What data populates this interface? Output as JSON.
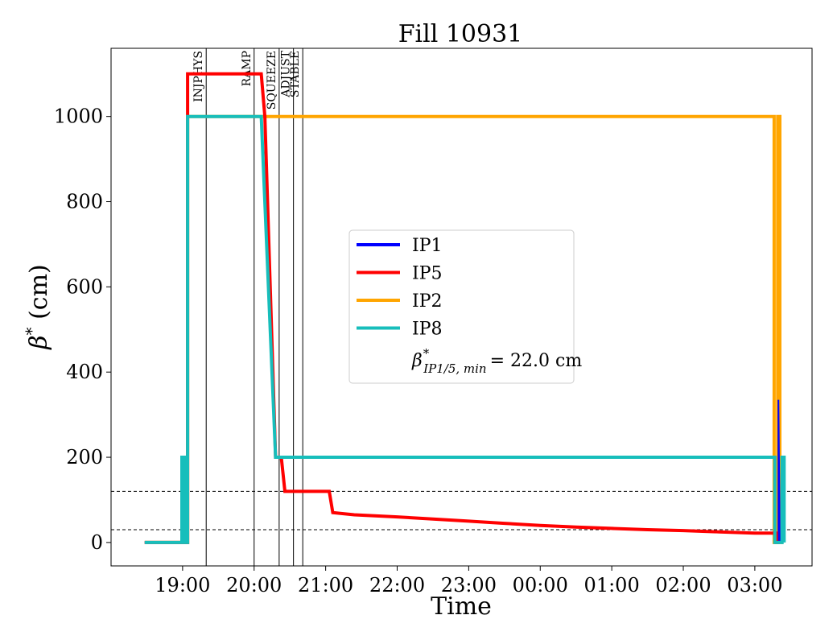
{
  "chart_data": {
    "type": "line",
    "title": "Fill 10931",
    "xlabel": "Time",
    "ylabel": "β* (cm)",
    "x_ticks": [
      "19:00",
      "20:00",
      "21:00",
      "22:00",
      "23:00",
      "00:00",
      "01:00",
      "02:00",
      "03:00"
    ],
    "y_ticks": [
      0,
      200,
      400,
      600,
      800,
      1000
    ],
    "xlim_hours": [
      18.0,
      27.8
    ],
    "ylim": [
      -55,
      1160
    ],
    "grid": false,
    "legend_position": "center",
    "phases": [
      {
        "label": "INJPHYS",
        "t": 19.33
      },
      {
        "label": "RAMP",
        "t": 20.0
      },
      {
        "label": "SQUEEZE",
        "t": 20.35
      },
      {
        "label": "ADJUST",
        "t": 20.55
      },
      {
        "label": "STABLE",
        "t": 20.68
      }
    ],
    "reference_lines": [
      120,
      30
    ],
    "series": [
      {
        "name": "IP1",
        "color": "#0000ff",
        "points": [
          [
            18.47,
            0
          ],
          [
            19.07,
            0
          ],
          [
            19.07,
            1100
          ],
          [
            20.1,
            1100
          ],
          [
            20.15,
            1000
          ],
          [
            20.3,
            200
          ],
          [
            20.38,
            200
          ],
          [
            20.43,
            120
          ],
          [
            21.05,
            120
          ],
          [
            21.1,
            70
          ],
          [
            21.4,
            65
          ],
          [
            22.0,
            60
          ],
          [
            22.5,
            55
          ],
          [
            23.0,
            50
          ],
          [
            23.5,
            45
          ],
          [
            24.0,
            40
          ],
          [
            24.5,
            36
          ],
          [
            25.0,
            33
          ],
          [
            25.5,
            30
          ],
          [
            26.0,
            28
          ],
          [
            26.5,
            25
          ],
          [
            27.0,
            22
          ],
          [
            27.3,
            22
          ],
          [
            27.3,
            0
          ],
          [
            27.33,
            0
          ],
          [
            27.33,
            335
          ],
          [
            27.35,
            0
          ],
          [
            27.4,
            0
          ]
        ]
      },
      {
        "name": "IP5",
        "color": "#ff0000",
        "points": [
          [
            18.47,
            0
          ],
          [
            19.07,
            0
          ],
          [
            19.07,
            1100
          ],
          [
            20.1,
            1100
          ],
          [
            20.15,
            1000
          ],
          [
            20.3,
            200
          ],
          [
            20.38,
            200
          ],
          [
            20.43,
            120
          ],
          [
            21.05,
            120
          ],
          [
            21.1,
            70
          ],
          [
            21.4,
            65
          ],
          [
            22.0,
            60
          ],
          [
            22.5,
            55
          ],
          [
            23.0,
            50
          ],
          [
            23.5,
            45
          ],
          [
            24.0,
            40
          ],
          [
            24.5,
            36
          ],
          [
            25.0,
            33
          ],
          [
            25.5,
            30
          ],
          [
            26.0,
            28
          ],
          [
            26.5,
            25
          ],
          [
            27.0,
            22
          ],
          [
            27.3,
            22
          ],
          [
            27.3,
            0
          ],
          [
            27.35,
            0
          ]
        ]
      },
      {
        "name": "IP2",
        "color": "#ffa500",
        "points": [
          [
            18.47,
            0
          ],
          [
            19.07,
            0
          ],
          [
            19.07,
            1000
          ],
          [
            27.27,
            1000
          ],
          [
            27.27,
            0
          ],
          [
            27.32,
            0
          ],
          [
            27.32,
            1000
          ],
          [
            27.35,
            1000
          ],
          [
            27.35,
            0
          ],
          [
            27.4,
            0
          ]
        ]
      },
      {
        "name": "IP8",
        "color": "#17bebb",
        "points": [
          [
            18.47,
            0
          ],
          [
            18.99,
            0
          ],
          [
            18.99,
            200
          ],
          [
            19.03,
            200
          ],
          [
            19.03,
            0
          ],
          [
            19.07,
            0
          ],
          [
            19.07,
            1000
          ],
          [
            20.1,
            1000
          ],
          [
            20.3,
            200
          ],
          [
            27.28,
            200
          ],
          [
            27.28,
            0
          ],
          [
            27.38,
            0
          ],
          [
            27.38,
            200
          ],
          [
            27.41,
            200
          ],
          [
            27.41,
            0
          ]
        ]
      }
    ],
    "annotation": {
      "label": "β*IP1/5, min = 22.0 cm",
      "symbol": "β",
      "superscript": "*",
      "subscript": "IP1/5, min",
      "value_text": "= 22.0 cm"
    }
  }
}
